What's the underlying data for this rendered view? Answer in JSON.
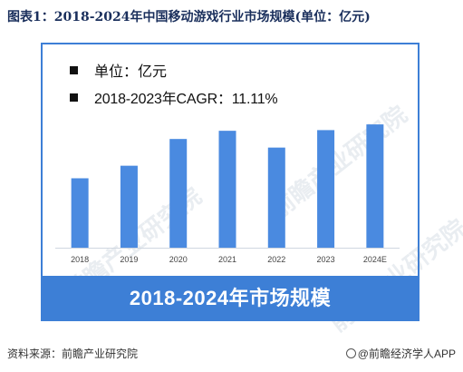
{
  "title": "图表1：2018-2024年中国移动游戏行业市场规模(单位：亿元)",
  "legend": {
    "unit_text": "单位：亿元",
    "cagr_text": "2018-2023年CAGR：11.11%"
  },
  "banner_text": "2018-2024年市场规模",
  "source_text": "资料来源：前瞻产业研究院",
  "brand_text": "@前瞻经济学人APP",
  "watermark_text": "前瞻产业研究院",
  "colors": {
    "bar": "#4a8ae0",
    "frame": "#3d7fd6",
    "title": "#1a2f5c"
  },
  "chart_data": {
    "type": "bar",
    "title": "",
    "xlabel": "",
    "ylabel": "",
    "categories": [
      "2018",
      "2019",
      "2020",
      "2021",
      "2022",
      "2023",
      "2024E"
    ],
    "values": [
      1339,
      1581,
      2097,
      2255,
      1931,
      2268,
      2378
    ],
    "ylim": [
      0,
      2800
    ],
    "grid": false,
    "legend_placement": "top-left"
  }
}
